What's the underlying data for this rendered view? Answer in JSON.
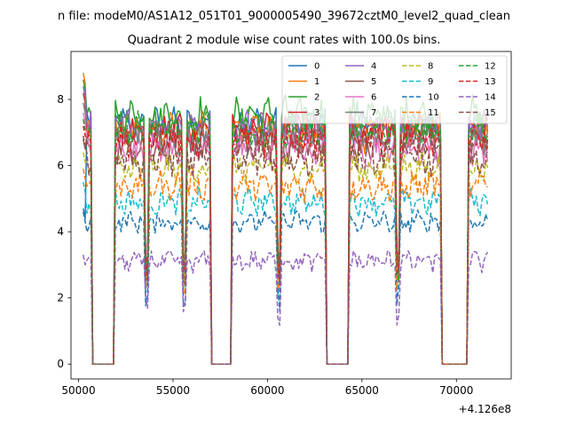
{
  "chart_data": {
    "type": "line",
    "suptitle": "n file: modeM0/AS1A12_051T01_9000005490_39672cztM0_level2_quad_clean",
    "title": "Quadrant 2 module wise count rates with 100.0s bins.",
    "xlabel": "",
    "ylabel": "",
    "x_offset_label": "+4.126e8",
    "xlim": [
      49600,
      72900
    ],
    "ylim": [
      -0.45,
      9.45
    ],
    "xticks": [
      50000,
      55000,
      60000,
      65000,
      70000
    ],
    "xtick_labels": [
      "50000",
      "55000",
      "60000",
      "65000",
      "70000"
    ],
    "yticks": [
      0,
      2,
      4,
      6,
      8
    ],
    "ytick_labels": [
      "0",
      "2",
      "4",
      "6",
      "8"
    ],
    "legend_loc": "upper-right",
    "legend_ncol": 4,
    "x_start": 50250,
    "x_step": 100,
    "n_points": 215,
    "gaps": [
      [
        50700,
        51900
      ],
      [
        58100,
        58100
      ],
      [
        63100,
        64300
      ],
      [
        69200,
        70600
      ]
    ],
    "gap_rows": [
      [
        57000,
        58100
      ]
    ],
    "series": [
      {
        "name": "0",
        "color": "#1f77b4",
        "dash": "solid",
        "level": 7.3,
        "spike": 4.7,
        "noise": 0.35
      },
      {
        "name": "1",
        "color": "#ff7f0e",
        "dash": "solid",
        "level": 7.0,
        "spike": 8.8,
        "noise": 0.45
      },
      {
        "name": "2",
        "color": "#2ca02c",
        "dash": "solid",
        "level": 7.5,
        "spike": 8.6,
        "noise": 0.45
      },
      {
        "name": "3",
        "color": "#d62728",
        "dash": "solid",
        "level": 7.0,
        "spike": 8.2,
        "noise": 0.4
      },
      {
        "name": "4",
        "color": "#9467bd",
        "dash": "solid",
        "level": 7.2,
        "spike": 8.4,
        "noise": 0.4
      },
      {
        "name": "5",
        "color": "#8c564b",
        "dash": "solid",
        "level": 6.6,
        "spike": 6.8,
        "noise": 0.4
      },
      {
        "name": "6",
        "color": "#e377c2",
        "dash": "solid",
        "level": 6.5,
        "spike": 7.6,
        "noise": 0.4
      },
      {
        "name": "7",
        "color": "#7f7f7f",
        "dash": "solid",
        "level": 6.9,
        "spike": 7.9,
        "noise": 0.4
      },
      {
        "name": "8",
        "color": "#bcbd22",
        "dash": "dashed",
        "level": 5.9,
        "spike": 6.4,
        "noise": 0.35
      },
      {
        "name": "9",
        "color": "#17becf",
        "dash": "dashed",
        "level": 4.9,
        "spike": 5.5,
        "noise": 0.3
      },
      {
        "name": "10",
        "color": "#1f77b4",
        "dash": "dashed",
        "level": 4.3,
        "spike": 4.6,
        "noise": 0.25
      },
      {
        "name": "11",
        "color": "#ff7f0e",
        "dash": "dashed",
        "level": 5.4,
        "spike": 5.9,
        "noise": 0.35
      },
      {
        "name": "12",
        "color": "#2ca02c",
        "dash": "dashed",
        "level": 7.1,
        "spike": 7.4,
        "noise": 0.4
      },
      {
        "name": "13",
        "color": "#d62728",
        "dash": "dashed",
        "level": 6.8,
        "spike": 7.2,
        "noise": 0.4
      },
      {
        "name": "14",
        "color": "#9467bd",
        "dash": "dashed",
        "level": 3.1,
        "spike": 3.3,
        "noise": 0.25
      },
      {
        "name": "15",
        "color": "#8c564b",
        "dash": "dashed",
        "level": 6.2,
        "spike": 6.9,
        "noise": 0.4
      }
    ]
  }
}
